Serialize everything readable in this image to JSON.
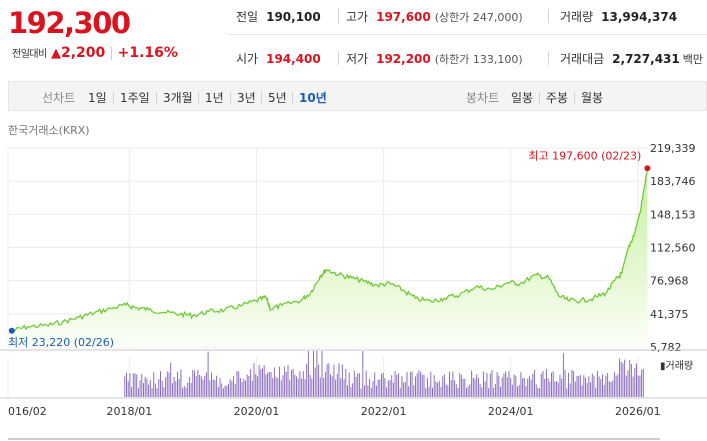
{
  "quote": {
    "price": "192,300",
    "change_label": "전일대비",
    "change_arrow": "▲",
    "change_value": "2,200",
    "change_pct": "+1.16%",
    "prev_close_label": "전일",
    "prev_close": "190,100",
    "high_label": "고가",
    "high": "197,600",
    "upper_limit": "(상한가 247,000)",
    "volume_label": "거래량",
    "volume": "13,994,374",
    "open_label": "시가",
    "open": "194,400",
    "low_label": "저가",
    "low": "192,200",
    "lower_limit": "(하한가 133,100)",
    "trade_value_label": "거래대금",
    "trade_value": "2,727,431",
    "trade_value_unit": "백만"
  },
  "period": {
    "label": "선차트",
    "options": [
      "1일",
      "1주일",
      "3개월",
      "1년",
      "3년",
      "5년",
      "10년"
    ],
    "selected": "10년",
    "candle_label": "봉차트",
    "candle_options": [
      "일봉",
      "주봉",
      "월봉"
    ]
  },
  "source": "한국거래소(KRX)",
  "colors": {
    "up": "#d9141e",
    "down": "#1a5bb5",
    "area_top": "#c6ef9f",
    "area_bottom": "#fbfef7",
    "line": "#67c82a",
    "volume": "#8d6fc0"
  },
  "chart_data": {
    "type": "area",
    "x_ticks": [
      "016/02",
      "2018/01",
      "2020/01",
      "2022/01",
      "2024/01",
      "2026/01"
    ],
    "x_tick_years": [
      2016.09,
      2018.0,
      2020.0,
      2022.0,
      2024.0,
      2026.0
    ],
    "x_range": [
      2016.09,
      2026.16
    ],
    "y_ticks": [
      "219,339",
      "183,746",
      "148,153",
      "112,560",
      "76,968",
      "41,375",
      "5,782"
    ],
    "y_range": [
      5782,
      219339
    ],
    "grid": true,
    "series": [
      {
        "values": [
          [
            2016.15,
            23220
          ],
          [
            2016.4,
            27500
          ],
          [
            2016.7,
            29000
          ],
          [
            2016.95,
            32500
          ],
          [
            2017.2,
            37500
          ],
          [
            2017.45,
            42500
          ],
          [
            2017.7,
            47000
          ],
          [
            2017.95,
            51000
          ],
          [
            2018.1,
            48000
          ],
          [
            2018.3,
            46000
          ],
          [
            2018.55,
            43000
          ],
          [
            2018.8,
            41000
          ],
          [
            2019.0,
            39500
          ],
          [
            2019.25,
            44000
          ],
          [
            2019.5,
            45500
          ],
          [
            2019.75,
            50000
          ],
          [
            2020.0,
            55500
          ],
          [
            2020.15,
            59000
          ],
          [
            2020.22,
            46500
          ],
          [
            2020.4,
            50500
          ],
          [
            2020.7,
            56000
          ],
          [
            2020.85,
            64000
          ],
          [
            2021.0,
            82000
          ],
          [
            2021.1,
            89000
          ],
          [
            2021.3,
            83500
          ],
          [
            2021.5,
            80000
          ],
          [
            2021.7,
            76000
          ],
          [
            2021.9,
            72000
          ],
          [
            2022.1,
            74000
          ],
          [
            2022.3,
            67000
          ],
          [
            2022.5,
            58000
          ],
          [
            2022.75,
            54500
          ],
          [
            2022.95,
            58000
          ],
          [
            2023.2,
            62000
          ],
          [
            2023.45,
            70500
          ],
          [
            2023.7,
            67500
          ],
          [
            2023.95,
            75000
          ],
          [
            2024.15,
            74000
          ],
          [
            2024.4,
            83000
          ],
          [
            2024.6,
            80000
          ],
          [
            2024.75,
            61000
          ],
          [
            2024.9,
            56000
          ],
          [
            2025.1,
            55500
          ],
          [
            2025.3,
            58000
          ],
          [
            2025.5,
            64000
          ],
          [
            2025.65,
            78000
          ],
          [
            2025.75,
            85000
          ],
          [
            2025.85,
            112000
          ],
          [
            2025.95,
            128000
          ],
          [
            2026.05,
            155000
          ],
          [
            2026.15,
            197600
          ]
        ]
      }
    ],
    "annotations": {
      "high_text": "최고 197,600 (02/23)",
      "low_text": "최저 23,220 (02/26)"
    },
    "volume_label": "거래량"
  }
}
